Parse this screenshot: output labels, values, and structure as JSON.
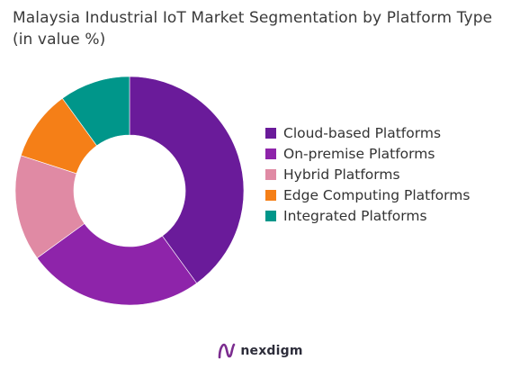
{
  "chart_data": {
    "type": "pie",
    "title": "Malaysia Industrial IoT Market Segmentation by Platform Type (in value %)",
    "categories": [
      "Cloud-based Platforms",
      "On-premise Platforms",
      "Hybrid Platforms",
      "Edge Computing Platforms",
      "Integrated Platforms"
    ],
    "values": [
      40,
      25,
      15,
      10,
      10
    ],
    "colors": [
      "#6a1b9a",
      "#8e24aa",
      "#e08aa4",
      "#f57f17",
      "#00968a"
    ],
    "donut": true,
    "legend_position": "right",
    "data_labels": false
  },
  "brand": {
    "name": "nexdigm",
    "icon": "nexdigm-logo-icon"
  }
}
